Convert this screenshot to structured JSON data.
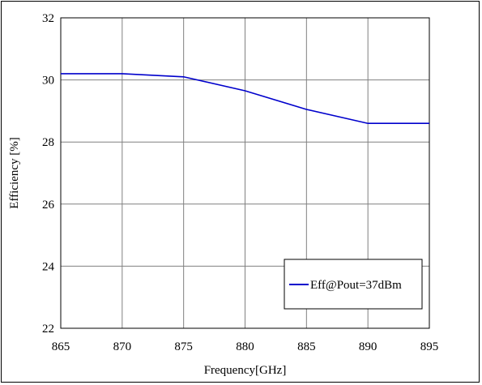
{
  "chart_data": {
    "type": "line",
    "xlabel": "Frequency[GHz]",
    "ylabel": "Efficiency [%]",
    "xlim": [
      865,
      895
    ],
    "ylim": [
      22,
      32
    ],
    "xticks": [
      865,
      870,
      875,
      880,
      885,
      890,
      895
    ],
    "yticks": [
      22,
      24,
      26,
      28,
      30,
      32
    ],
    "grid": true,
    "legend_position": "bottom-right",
    "series": [
      {
        "name": "Eff@Pout=37dBm",
        "color": "#0000cc",
        "x": [
          865,
          870,
          875,
          880,
          885,
          890,
          895
        ],
        "y": [
          30.2,
          30.2,
          30.1,
          29.65,
          29.05,
          28.6,
          28.6
        ]
      }
    ]
  }
}
